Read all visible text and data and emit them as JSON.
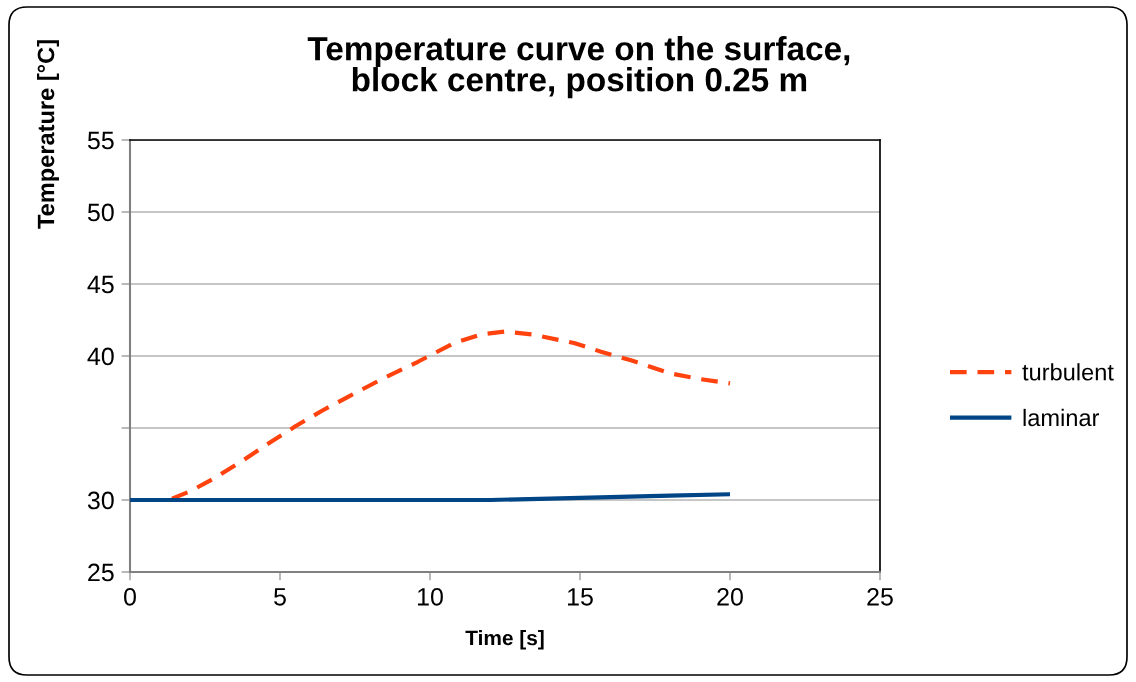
{
  "chart_data": {
    "type": "line",
    "title": "Temperature curve on the surface,\nblock centre, position 0.25 m",
    "xlabel": "Time [s]",
    "ylabel": "Temperature [°C]",
    "xlim": [
      0,
      25
    ],
    "xticks": [
      0,
      5,
      10,
      15,
      20,
      25
    ],
    "ylim": [
      25,
      55
    ],
    "yticks": [
      25,
      30,
      {
        "value": 35,
        "label": null
      },
      40,
      45,
      50,
      55
    ],
    "grid": "y",
    "legend": "right",
    "series": [
      {
        "name": "turbulent",
        "color": "#ff420e",
        "line_style": "dashed",
        "x": [
          1.4,
          2.0,
          2.8,
          3.8,
          4.6,
          5.5,
          6.4,
          7.3,
          8.4,
          9.6,
          10.8,
          11.7,
          12.5,
          13.4,
          14.8,
          15.7,
          16.7,
          18.0,
          19.0,
          20.0
        ],
        "values": [
          30.1,
          30.6,
          31.5,
          32.8,
          33.9,
          35.1,
          36.2,
          37.2,
          38.4,
          39.6,
          40.9,
          41.5,
          41.7,
          41.5,
          40.9,
          40.3,
          39.7,
          38.8,
          38.4,
          38.1
        ]
      },
      {
        "name": "laminar",
        "color": "#004586",
        "line_style": "solid",
        "x": [
          0,
          5,
          10,
          12,
          14,
          16,
          18,
          20
        ],
        "values": [
          30.0,
          30.0,
          30.0,
          30.0,
          30.1,
          30.2,
          30.3,
          30.4
        ]
      }
    ]
  }
}
